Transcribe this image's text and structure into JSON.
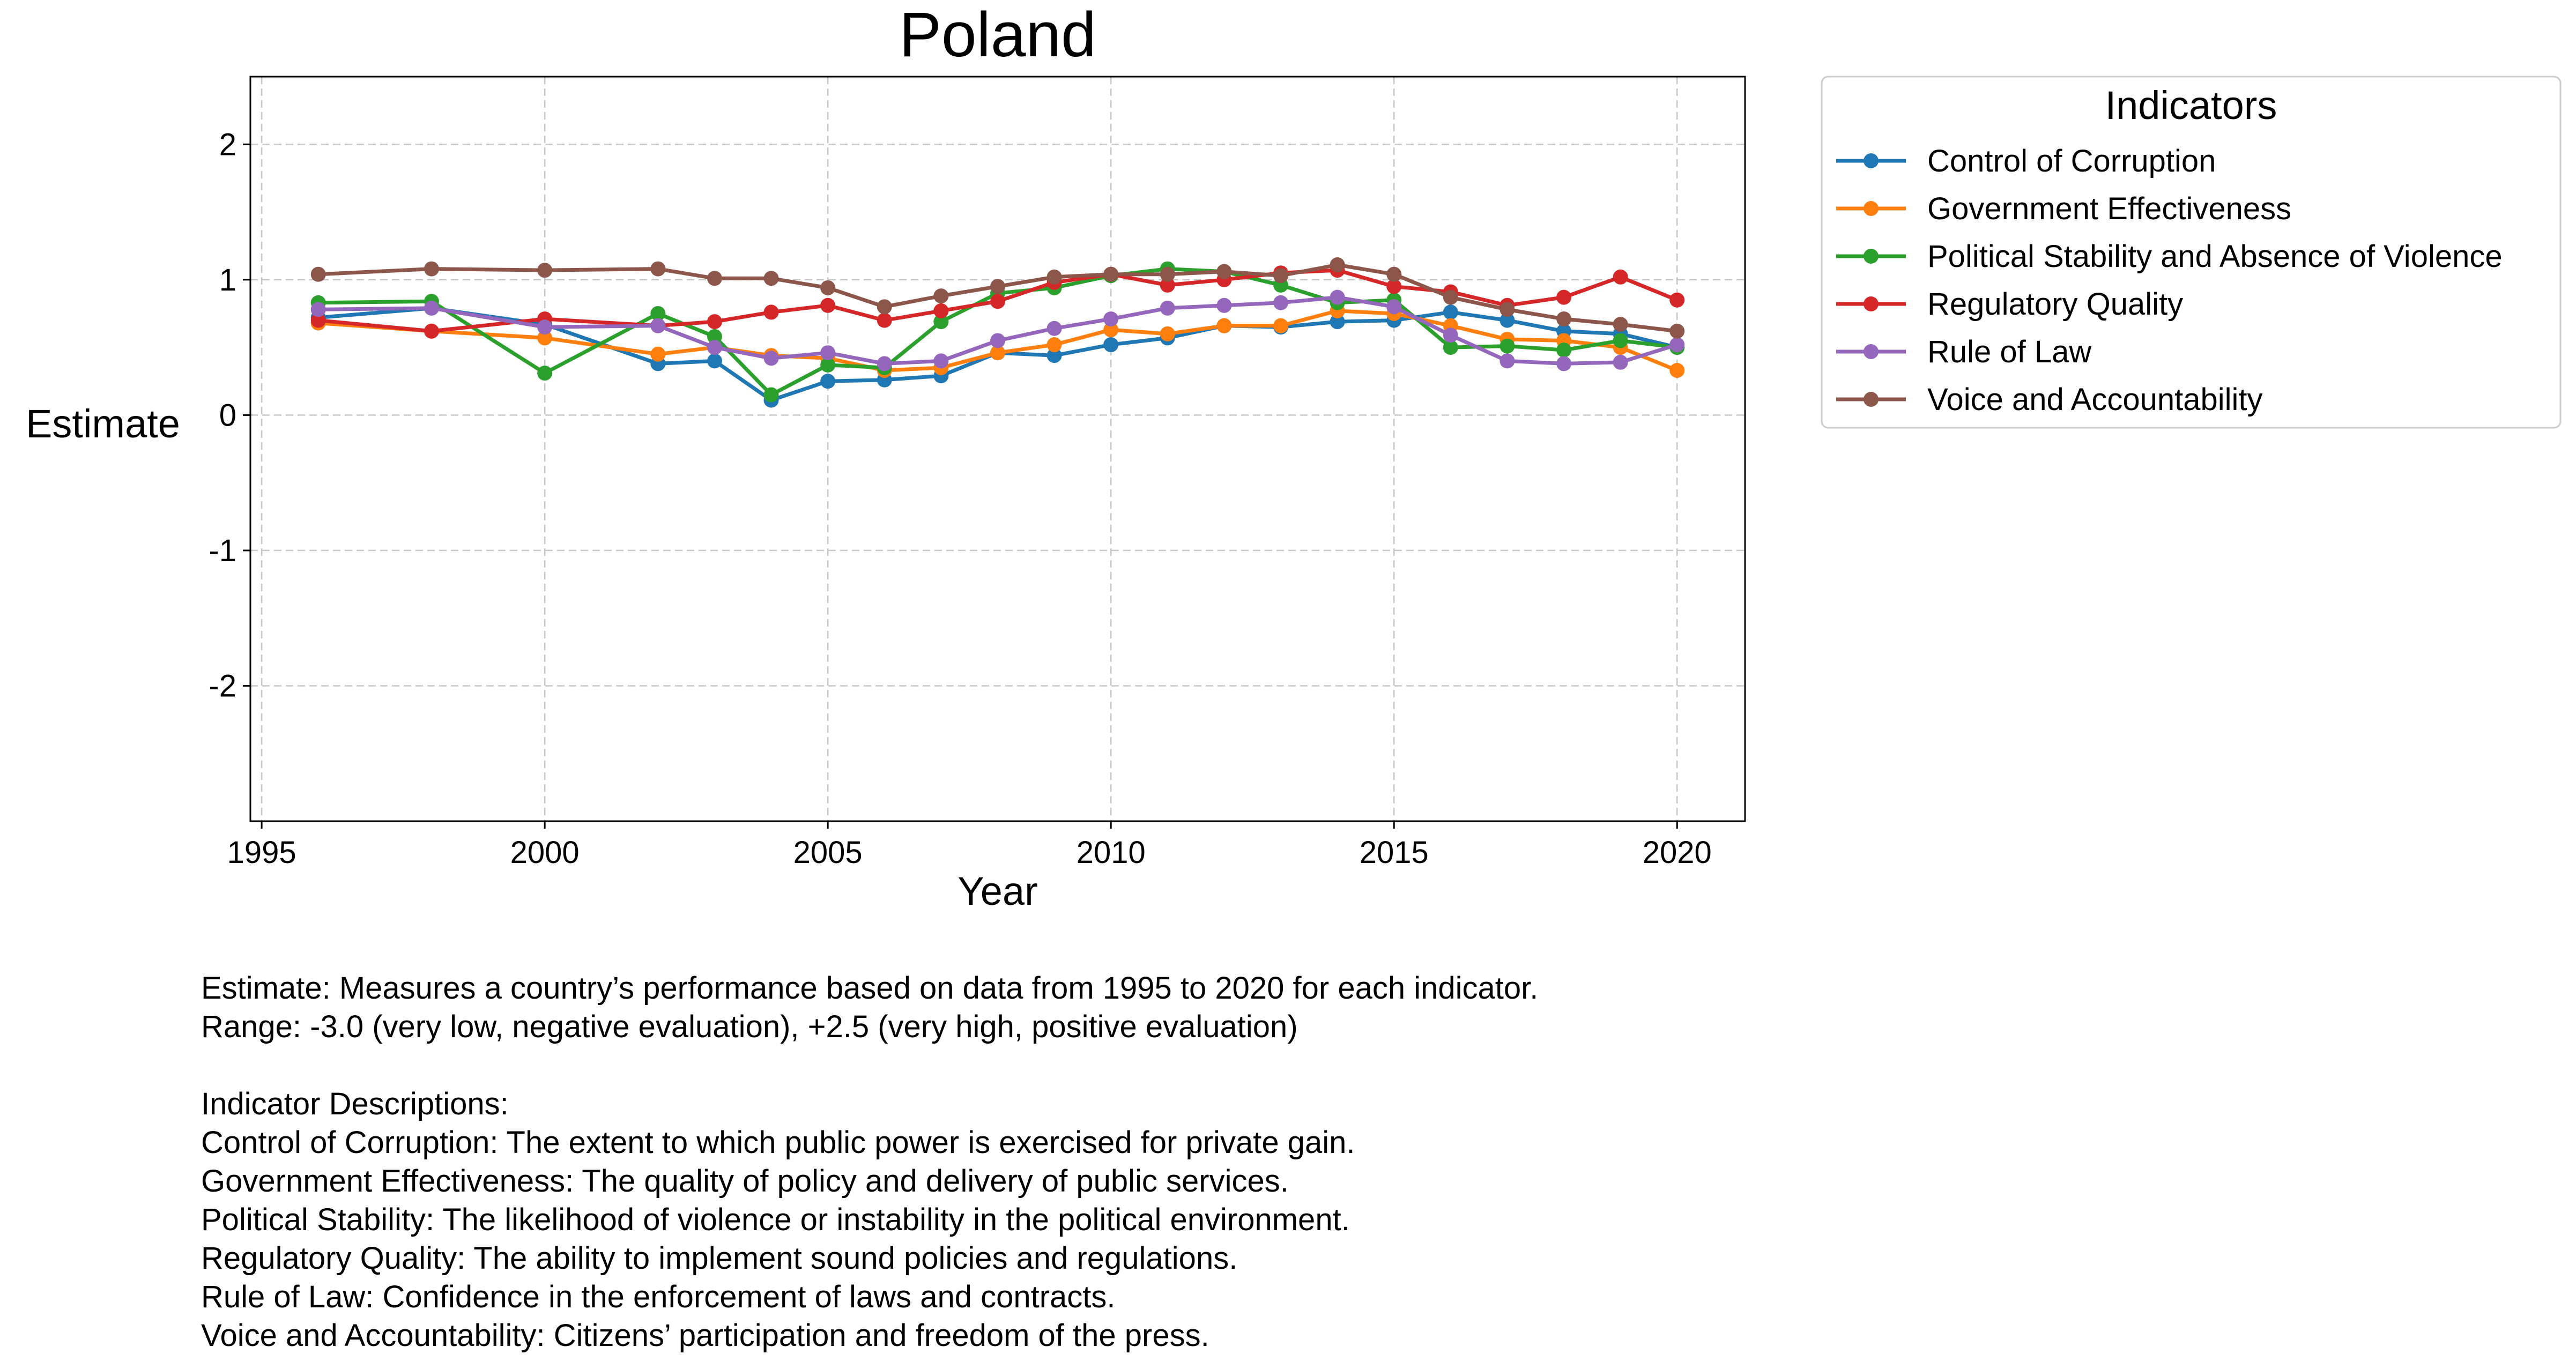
{
  "chart_data": {
    "type": "line",
    "title": "Poland",
    "xlabel": "Year",
    "ylabel": "Estimate",
    "xlim": [
      1994.8,
      2021.2
    ],
    "ylim": [
      -3.0,
      2.5
    ],
    "xticks": [
      1995,
      2000,
      2005,
      2010,
      2015,
      2020
    ],
    "yticks": [
      2,
      1,
      0,
      -1,
      -2
    ],
    "grid": true,
    "marker": "circle",
    "legend": {
      "title": "Indicators",
      "placement": "outside-top-right"
    },
    "x": [
      1996,
      1998,
      2000,
      2002,
      2003,
      2004,
      2005,
      2006,
      2007,
      2008,
      2009,
      2010,
      2011,
      2012,
      2013,
      2014,
      2015,
      2016,
      2017,
      2018,
      2019,
      2020
    ],
    "series": [
      {
        "name": "Control of Corruption",
        "color": "#1f77b4",
        "values": [
          0.72,
          0.79,
          0.67,
          0.38,
          0.4,
          0.11,
          0.25,
          0.26,
          0.29,
          0.46,
          0.44,
          0.52,
          0.57,
          0.66,
          0.65,
          0.69,
          0.7,
          0.76,
          0.7,
          0.62,
          0.6,
          0.5
        ]
      },
      {
        "name": "Government Effectiveness",
        "color": "#ff7f0e",
        "values": [
          0.68,
          0.62,
          0.57,
          0.45,
          0.5,
          0.44,
          0.42,
          0.33,
          0.35,
          0.46,
          0.52,
          0.63,
          0.6,
          0.66,
          0.66,
          0.77,
          0.75,
          0.66,
          0.56,
          0.55,
          0.5,
          0.33
        ]
      },
      {
        "name": "Political Stability and Absence of Violence",
        "color": "#2ca02c",
        "values": [
          0.83,
          0.84,
          0.31,
          0.75,
          0.58,
          0.15,
          0.37,
          0.35,
          0.69,
          0.9,
          0.94,
          1.03,
          1.08,
          1.06,
          0.96,
          0.83,
          0.85,
          0.5,
          0.51,
          0.48,
          0.55,
          0.5
        ]
      },
      {
        "name": "Regulatory Quality",
        "color": "#d62728",
        "values": [
          0.7,
          0.62,
          0.71,
          0.66,
          0.69,
          0.76,
          0.81,
          0.7,
          0.77,
          0.84,
          0.98,
          1.04,
          0.96,
          1.0,
          1.05,
          1.07,
          0.95,
          0.91,
          0.81,
          0.87,
          1.02,
          0.85
        ]
      },
      {
        "name": "Rule of Law",
        "color": "#9467bd",
        "values": [
          0.78,
          0.79,
          0.65,
          0.66,
          0.5,
          0.42,
          0.46,
          0.38,
          0.4,
          0.55,
          0.64,
          0.71,
          0.79,
          0.81,
          0.83,
          0.87,
          0.8,
          0.59,
          0.4,
          0.38,
          0.39,
          0.52
        ]
      },
      {
        "name": "Voice and Accountability",
        "color": "#8c564b",
        "values": [
          1.04,
          1.08,
          1.07,
          1.08,
          1.01,
          1.01,
          0.94,
          0.8,
          0.88,
          0.95,
          1.02,
          1.04,
          1.04,
          1.06,
          1.03,
          1.11,
          1.04,
          0.87,
          0.78,
          0.71,
          0.67,
          0.62
        ]
      }
    ]
  },
  "notes": {
    "line1": "Estimate: Measures a country’s performance based on data from 1995 to 2020 for each indicator.",
    "line2": "Range: -3.0 (very low, negative evaluation), +2.5 (very high, positive evaluation)",
    "heading": "Indicator Descriptions:",
    "desc1": "Control of Corruption: The extent to which public power is exercised for private gain.",
    "desc2": "Government Effectiveness: The quality of policy and delivery of public services.",
    "desc3": "Political Stability: The likelihood of violence or instability in the political environment.",
    "desc4": "Regulatory Quality: The ability to implement sound policies and regulations.",
    "desc5": "Rule of Law: Confidence in the enforcement of laws and contracts.",
    "desc6": "Voice and Accountability: Citizens’ participation and freedom of the press."
  }
}
